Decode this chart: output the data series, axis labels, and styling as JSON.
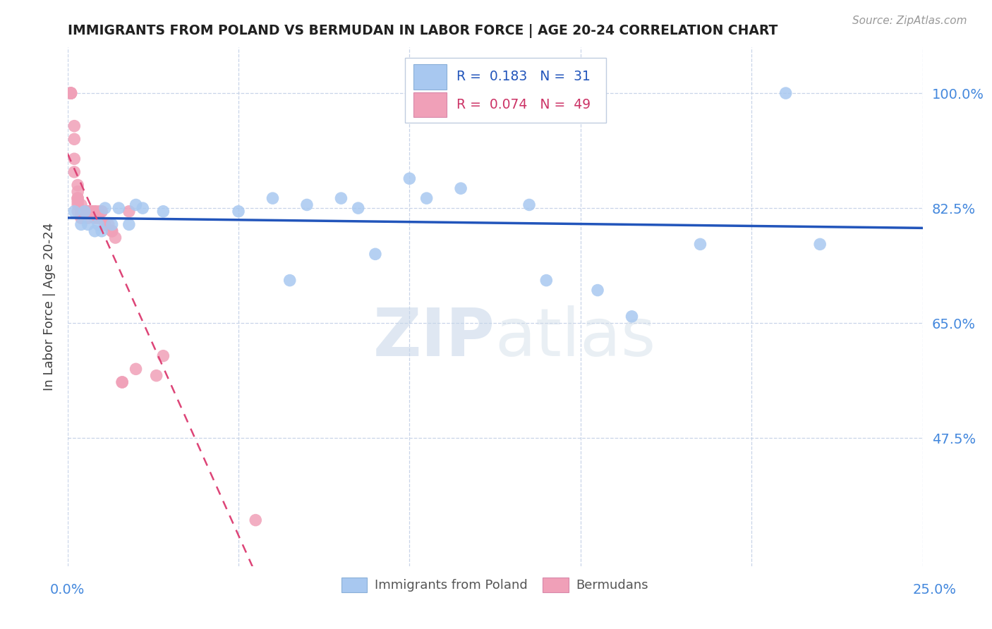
{
  "title": "IMMIGRANTS FROM POLAND VS BERMUDAN IN LABOR FORCE | AGE 20-24 CORRELATION CHART",
  "source": "Source: ZipAtlas.com",
  "ylabel": "In Labor Force | Age 20-24",
  "xmin": 0.0,
  "xmax": 0.25,
  "ymin": 0.28,
  "ymax": 1.07,
  "poland_R": 0.183,
  "poland_N": 31,
  "bermuda_R": 0.074,
  "bermuda_N": 49,
  "poland_color": "#a8c8f0",
  "bermuda_color": "#f0a0b8",
  "poland_line_color": "#2255bb",
  "bermuda_line_color": "#dd4477",
  "legend_label_poland": "Immigrants from Poland",
  "legend_label_bermuda": "Bermudans",
  "poland_x": [
    0.002,
    0.004,
    0.005,
    0.006,
    0.008,
    0.009,
    0.01,
    0.011,
    0.013,
    0.015,
    0.018,
    0.02,
    0.022,
    0.028,
    0.05,
    0.06,
    0.065,
    0.07,
    0.08,
    0.085,
    0.09,
    0.1,
    0.105,
    0.115,
    0.135,
    0.14,
    0.155,
    0.165,
    0.185,
    0.21,
    0.22
  ],
  "poland_y": [
    0.82,
    0.8,
    0.82,
    0.8,
    0.79,
    0.8,
    0.79,
    0.825,
    0.8,
    0.825,
    0.8,
    0.83,
    0.825,
    0.82,
    0.82,
    0.84,
    0.715,
    0.83,
    0.84,
    0.825,
    0.755,
    0.87,
    0.84,
    0.855,
    0.83,
    0.715,
    0.7,
    0.66,
    0.77,
    1.0,
    0.77
  ],
  "bermuda_x": [
    0.001,
    0.001,
    0.001,
    0.001,
    0.001,
    0.002,
    0.002,
    0.002,
    0.002,
    0.003,
    0.003,
    0.003,
    0.003,
    0.003,
    0.003,
    0.003,
    0.004,
    0.004,
    0.004,
    0.004,
    0.004,
    0.005,
    0.005,
    0.005,
    0.006,
    0.006,
    0.006,
    0.006,
    0.007,
    0.007,
    0.008,
    0.008,
    0.008,
    0.009,
    0.009,
    0.01,
    0.01,
    0.011,
    0.012,
    0.013,
    0.013,
    0.014,
    0.016,
    0.016,
    0.018,
    0.02,
    0.026,
    0.028,
    0.055
  ],
  "bermuda_y": [
    1.0,
    1.0,
    1.0,
    1.0,
    1.0,
    0.95,
    0.93,
    0.9,
    0.88,
    0.86,
    0.85,
    0.84,
    0.84,
    0.835,
    0.83,
    0.82,
    0.83,
    0.82,
    0.82,
    0.815,
    0.81,
    0.82,
    0.82,
    0.82,
    0.82,
    0.82,
    0.82,
    0.81,
    0.82,
    0.82,
    0.82,
    0.82,
    0.81,
    0.82,
    0.81,
    0.82,
    0.82,
    0.8,
    0.8,
    0.79,
    0.79,
    0.78,
    0.56,
    0.56,
    0.82,
    0.58,
    0.57,
    0.6,
    0.35
  ],
  "watermark_zip": "ZIP",
  "watermark_atlas": "atlas",
  "grid_color": "#c8d4e8",
  "background_color": "#ffffff",
  "ytick_positions": [
    0.475,
    0.65,
    0.825,
    1.0
  ],
  "ytick_labels": [
    "47.5%",
    "65.0%",
    "82.5%",
    "100.0%"
  ],
  "xtick_positions": [
    0.0,
    0.05,
    0.1,
    0.15,
    0.2,
    0.25
  ]
}
